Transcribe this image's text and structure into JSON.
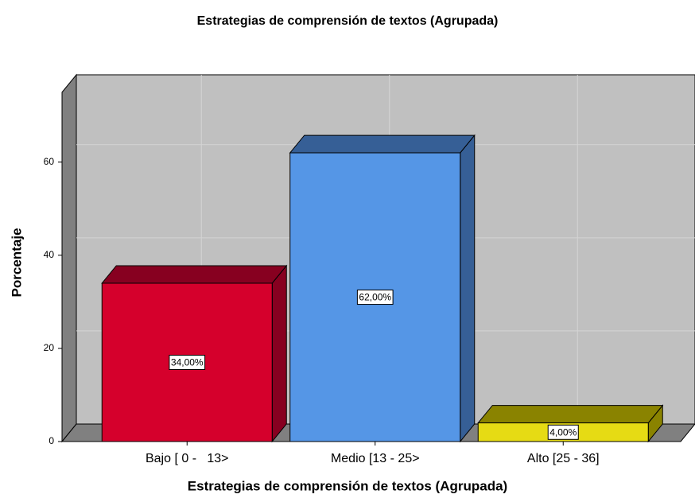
{
  "chart_data": {
    "type": "bar3d",
    "title": "Estrategias de comprensión de textos (Agrupada)",
    "x_label": "Estrategias de comprensión de textos (Agrupada)",
    "y_label": "Porcentaje",
    "categories": [
      "Bajo [ 0 -   13>",
      "Medio [13 - 25>",
      "Alto [25 - 36]"
    ],
    "values": [
      34,
      62,
      4
    ],
    "value_labels": [
      "34,00%",
      "62,00%",
      "4,00%"
    ],
    "colors": [
      "#d5002c",
      "#5596e6",
      "#e6db14"
    ],
    "side_colors": [
      "#870020",
      "#365f96",
      "#8a8300"
    ],
    "ylim": [
      0,
      75
    ],
    "yticks": [
      0,
      20,
      40,
      60
    ],
    "grid": true
  }
}
